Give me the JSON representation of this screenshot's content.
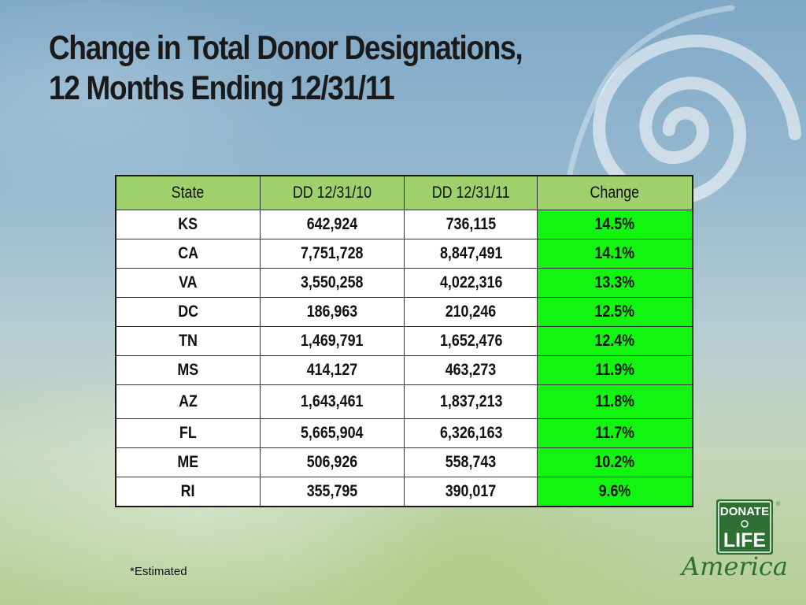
{
  "slide": {
    "title_line1": "Change in Total Donor Designations,",
    "title_line2": "12 Months Ending 12/31/11",
    "footnote": "*Estimated"
  },
  "table": {
    "headers": [
      "State",
      "DD 12/31/10",
      "DD 12/31/11",
      "Change"
    ],
    "rows": [
      {
        "state": "KS",
        "dd2010": "642,924",
        "dd2011": "736,115",
        "change": "14.5%"
      },
      {
        "state": "CA",
        "dd2010": "7,751,728",
        "dd2011": "8,847,491",
        "change": "14.1%"
      },
      {
        "state": "VA",
        "dd2010": "3,550,258",
        "dd2011": "4,022,316",
        "change": "13.3%"
      },
      {
        "state": "DC",
        "dd2010": "186,963",
        "dd2011": "210,246",
        "change": "12.5%"
      },
      {
        "state": "TN",
        "dd2010": "1,469,791",
        "dd2011": "1,652,476",
        "change": "12.4%"
      },
      {
        "state": "MS",
        "dd2010": "414,127",
        "dd2011": "463,273",
        "change": "11.9%"
      },
      {
        "state": "AZ",
        "dd2010": "1,643,461",
        "dd2011": "1,837,213",
        "change": "11.8%"
      },
      {
        "state": "FL",
        "dd2010": "5,665,904",
        "dd2011": "6,326,163",
        "change": "11.7%"
      },
      {
        "state": "ME",
        "dd2010": "506,926",
        "dd2011": "558,743",
        "change": "10.2%"
      },
      {
        "state": "RI",
        "dd2010": "355,795",
        "dd2011": "390,017",
        "change": "9.6%"
      }
    ]
  },
  "logo": {
    "line1": "DONATE",
    "line2": "LIFE",
    "script": "America",
    "mark": "®"
  },
  "colors": {
    "header_fill": "#9ed16b",
    "change_fill": "#11f511",
    "logo_green": "#2e6f33"
  }
}
